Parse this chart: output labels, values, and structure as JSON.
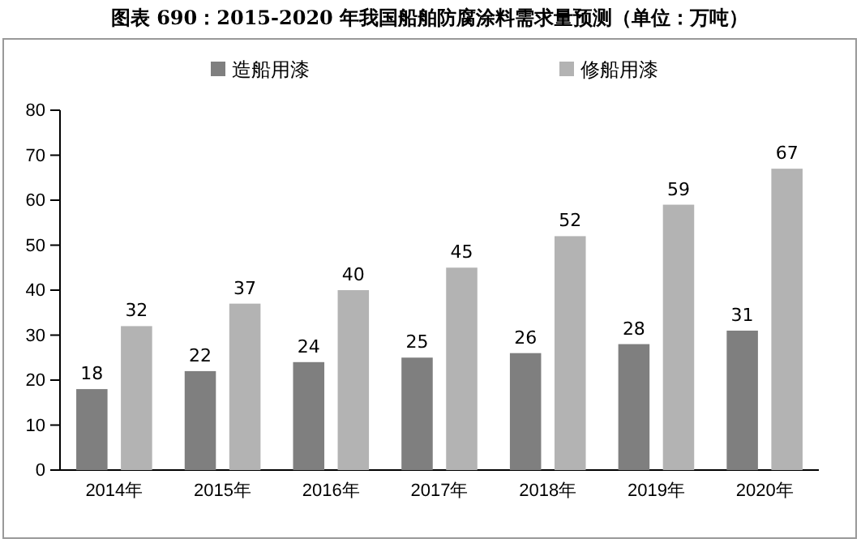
{
  "chart_data": {
    "type": "bar",
    "title": "图表 690：2015-2020 年我国船舶防腐涂料需求量预测（单位：万吨）",
    "categories": [
      "2014年",
      "2015年",
      "2016年",
      "2017年",
      "2018年",
      "2019年",
      "2020年"
    ],
    "series": [
      {
        "name": "造船用漆",
        "color": "#7f7f7f",
        "values": [
          18,
          22,
          24,
          25,
          26,
          28,
          31
        ]
      },
      {
        "name": "修船用漆",
        "color": "#b3b3b3",
        "values": [
          32,
          37,
          40,
          45,
          52,
          59,
          67
        ]
      }
    ],
    "ylim": [
      0,
      80
    ],
    "yticks": [
      0,
      10,
      20,
      30,
      40,
      50,
      60,
      70,
      80
    ],
    "grid": false,
    "legend": "top",
    "data_labels": true
  }
}
